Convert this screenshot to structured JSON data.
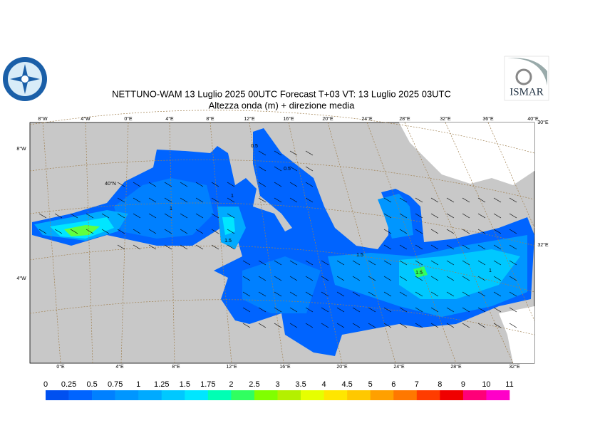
{
  "header": {
    "title": "NETTUNO-WAM  13  Luglio   2025 00UTC Forecast T+03 VT: 13  Luglio   2025 03UTC",
    "subtitle": "Altezza onda (m) + direzione media"
  },
  "logos": {
    "right": "ISMAR"
  },
  "map": {
    "top_labels": [
      "8°W",
      "4°W",
      "0°E",
      "4°E",
      "8°E",
      "12°E",
      "16°E",
      "20°E",
      "24°E",
      "28°E",
      "32°E",
      "36°E",
      "40°E"
    ],
    "bottom_labels": [
      "0°E",
      "4°E",
      "8°E",
      "12°E",
      "16°E",
      "20°E",
      "24°E",
      "28°E",
      "32°E"
    ],
    "left_labels": [
      "8°W",
      "4°W"
    ],
    "inner_labels": [
      "40°N"
    ],
    "right_labels": [
      "30°E",
      "32°E"
    ],
    "contour_labels": [
      "0.5",
      "0.5",
      "1",
      "1.5",
      "1.5",
      "1.5",
      "1",
      "1"
    ]
  },
  "colorbar": {
    "labels": [
      "0",
      "0.25",
      "0.5",
      "0.75",
      "1",
      "1.25",
      "1.5",
      "1.75",
      "2",
      "2.5",
      "3",
      "3.5",
      "4",
      "4.5",
      "5",
      "6",
      "7",
      "8",
      "9",
      "10",
      "11"
    ],
    "colors": [
      "#0050f0",
      "#0064ff",
      "#0080ff",
      "#0096ff",
      "#00aaff",
      "#00c8ff",
      "#00e6ff",
      "#00ffb4",
      "#30ff60",
      "#80ff00",
      "#b4f000",
      "#e6ff00",
      "#ffe600",
      "#ffc800",
      "#ffa000",
      "#ff7800",
      "#ff3c00",
      "#f00000",
      "#ff0078",
      "#ff00c8"
    ]
  }
}
